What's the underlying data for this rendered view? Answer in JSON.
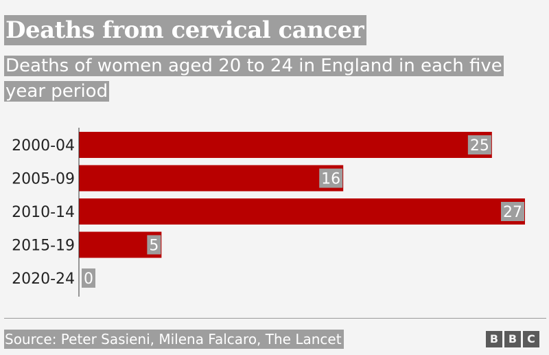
{
  "chart_data": {
    "type": "bar",
    "orientation": "horizontal",
    "title": "Deaths from cervical cancer",
    "subtitle": "Deaths of women aged 20 to 24 in England in each five year period",
    "categories": [
      "2000-04",
      "2005-09",
      "2010-14",
      "2015-19",
      "2020-24"
    ],
    "values": [
      25,
      16,
      27,
      5,
      0
    ],
    "xlim": [
      0,
      27
    ],
    "grid": false,
    "data_labels": true,
    "bar_color": "#b80000",
    "label_bg_color": "#9e9e9e"
  },
  "footer": {
    "source": "Source: Peter Sasieni, Milena Falcaro, The Lancet",
    "logo_letters": [
      "B",
      "B",
      "C"
    ]
  }
}
